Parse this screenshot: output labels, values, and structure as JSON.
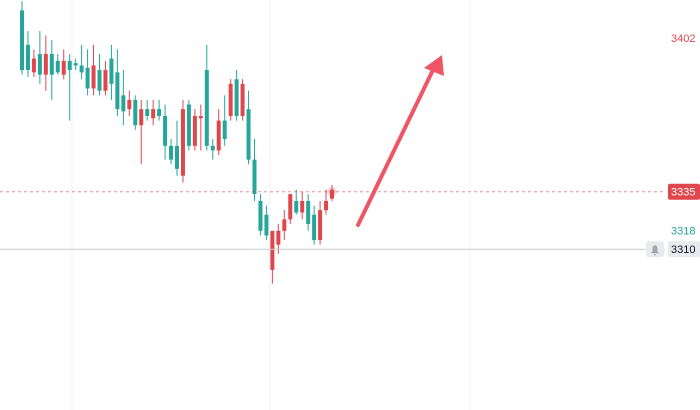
{
  "chart_data": {
    "type": "candlestick",
    "ylim": [
      3240,
      3418.5
    ],
    "up_color": "#e0474c",
    "down_color": "#26a69a",
    "open": [
      3414,
      3399,
      3387,
      3395,
      3386,
      3395,
      3392,
      3386,
      3392,
      3391,
      3390,
      3389,
      3380,
      3388,
      3379,
      3393,
      3387,
      3377,
      3371,
      3375,
      3364,
      3371,
      3367,
      3371,
      3368,
      3355,
      3355,
      3342,
      3373,
      3355,
      3367,
      3388,
      3355,
      3353,
      3366,
      3368,
      3384,
      3368,
      3371,
      3349,
      3331,
      3325,
      3301,
      3312,
      3318,
      3323,
      3331,
      3326,
      3331,
      3325,
      3314,
      3327,
      3332
    ],
    "high": [
      3418,
      3405,
      3397,
      3405,
      3403,
      3401,
      3395,
      3397,
      3395,
      3393,
      3399,
      3397,
      3399,
      3395,
      3392,
      3399,
      3397,
      3388,
      3379,
      3377,
      3375,
      3375,
      3375,
      3375,
      3373,
      3358,
      3366,
      3375,
      3375,
      3371,
      3373,
      3399,
      3358,
      3371,
      3377,
      3384,
      3388,
      3384,
      3379,
      3358,
      3334,
      3329,
      3318,
      3321,
      3327,
      3334,
      3336,
      3335,
      3334,
      3329,
      3331,
      3336,
      3338
    ],
    "low": [
      3386,
      3385,
      3385,
      3382,
      3379,
      3375,
      3386,
      3384,
      3366,
      3388,
      3384,
      3377,
      3377,
      3377,
      3377,
      3375,
      3368,
      3364,
      3368,
      3362,
      3347,
      3366,
      3364,
      3366,
      3349,
      3347,
      3342,
      3339,
      3353,
      3353,
      3353,
      3353,
      3349,
      3351,
      3355,
      3366,
      3366,
      3366,
      3347,
      3331,
      3316,
      3314,
      3295,
      3308,
      3314,
      3321,
      3325,
      3323,
      3318,
      3312,
      3312,
      3325,
      3331
    ],
    "close": [
      3388,
      3388,
      3393,
      3386,
      3395,
      3386,
      3387,
      3392,
      3388,
      3390,
      3387,
      3380,
      3390,
      3379,
      3388,
      3382,
      3371,
      3370,
      3375,
      3364,
      3371,
      3368,
      3371,
      3368,
      3355,
      3349,
      3345,
      3371,
      3355,
      3368,
      3368,
      3355,
      3353,
      3366,
      3358,
      3382,
      3368,
      3382,
      3349,
      3334,
      3318,
      3316,
      3318,
      3318,
      3323,
      3334,
      3326,
      3331,
      3321,
      3314,
      3327,
      3331,
      3335
    ],
    "price_lines": [
      {
        "value": 3402,
        "color": "#e0474c",
        "box": false,
        "line": "none"
      },
      {
        "value": 3335,
        "color": "#e0474c",
        "box": true,
        "line": "dashed"
      },
      {
        "value": 3318,
        "color": "#26a69a",
        "box": false,
        "line": "none"
      },
      {
        "value": 3310,
        "color": "#787b86",
        "box": true,
        "line": "solid",
        "alert": true
      }
    ]
  }
}
